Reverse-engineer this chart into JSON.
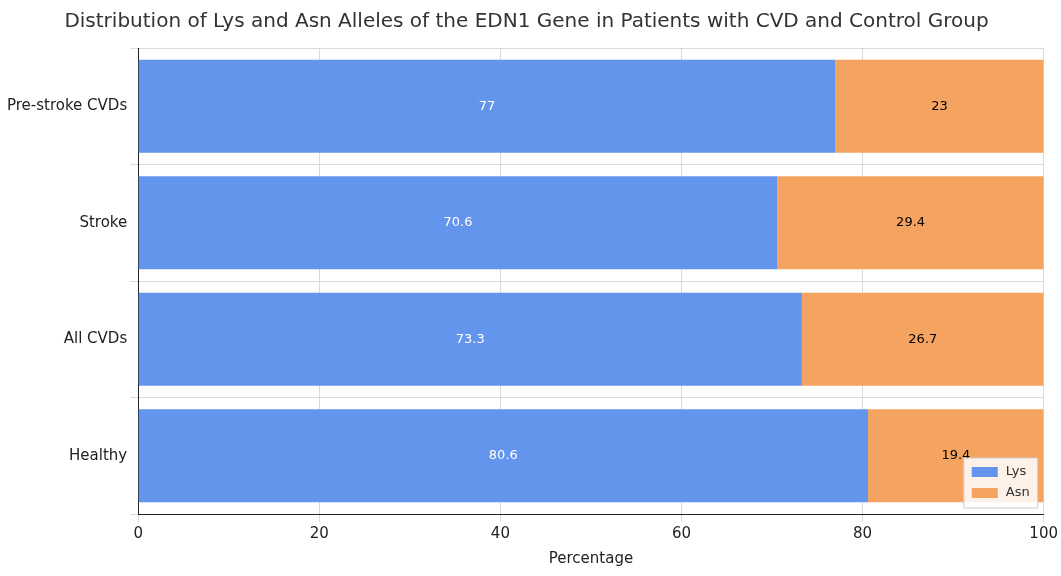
{
  "chart_data": {
    "type": "bar",
    "orientation": "horizontal",
    "stacked": true,
    "title": "Distribution of Lys and Asn Alleles of the EDN1 Gene in Patients with CVD and Control Group",
    "xlabel": "Percentage",
    "categories": [
      "Pre-stroke CVDs",
      "Stroke",
      "All CVDs",
      "Healthy"
    ],
    "series": [
      {
        "name": "Lys",
        "color": "#6495ed",
        "values": [
          77,
          70.6,
          73.3,
          80.6
        ]
      },
      {
        "name": "Asn",
        "color": "#f4a460",
        "values": [
          23,
          29.4,
          26.7,
          19.4
        ]
      }
    ],
    "xlim": [
      0,
      100
    ],
    "xticks": [
      0,
      20,
      40,
      60,
      80,
      100
    ],
    "grid": true,
    "legend": "bottom right",
    "data_labels": true
  }
}
